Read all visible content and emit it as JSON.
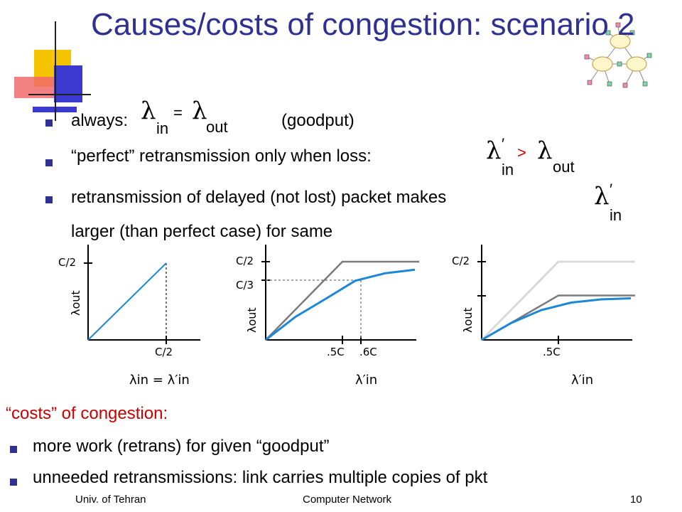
{
  "title": "Causes/costs of congestion: scenario 2",
  "bullets": {
    "b1_text": "always:",
    "b1_note": "(goodput)",
    "b2_text": "“perfect” retransmission only when loss:",
    "b3_line1": "retransmission of delayed  (not lost) packet makes",
    "b3_line2": "larger (than perfect case) for same"
  },
  "math": {
    "lambda": "λ",
    "prime": "′",
    "sub_in": "in",
    "sub_out": "out",
    "eq": "=",
    "gt": ">"
  },
  "costs": {
    "heading": "“costs” of congestion:",
    "item1": "more work (retrans) for given “goodput”",
    "item2": "unneeded retransmissions: link carries multiple copies of pkt"
  },
  "footer": {
    "left": "Univ. of Tehran",
    "center": "Computer Network",
    "page": "10"
  },
  "colors": {
    "title": "#2e3192",
    "bullet": "#2e3192",
    "curve_blue": "#1b87d6",
    "curve_gray": "#7a7a7a",
    "curve_light": "#d9d9d9",
    "red_text": "#cc0000"
  },
  "chart_data": [
    {
      "type": "line",
      "xlabel": "λin = λ′in",
      "ylabel": "λout",
      "x_ticks": [
        "C/2"
      ],
      "y_ticks": [
        "C/2"
      ],
      "series": [
        {
          "points": [
            [
              0,
              0
            ],
            [
              0.5,
              0.5
            ]
          ]
        }
      ]
    },
    {
      "type": "line",
      "xlabel": "λ′in",
      "ylabel": "λout",
      "x_ticks": [
        ".5C",
        ".6C"
      ],
      "y_ticks": [
        "C/2",
        "C/3"
      ],
      "series": [
        {
          "points": [
            [
              0,
              0
            ],
            [
              0.5,
              0.5
            ],
            [
              1.0,
              0.5
            ]
          ]
        },
        {
          "points": [
            [
              0,
              0
            ],
            [
              0.2,
              0.13
            ],
            [
              0.4,
              0.23
            ],
            [
              0.6,
              0.333
            ],
            [
              0.8,
              0.375
            ],
            [
              1.0,
              0.395
            ]
          ]
        }
      ]
    },
    {
      "type": "line",
      "xlabel": "λ′in",
      "ylabel": "λout",
      "x_ticks": [
        ".5C"
      ],
      "y_ticks": [
        "C/2"
      ],
      "series": [
        {
          "points": [
            [
              0,
              0
            ],
            [
              0.5,
              0.5
            ],
            [
              1.0,
              0.5
            ]
          ]
        },
        {
          "points": [
            [
              0,
              0
            ],
            [
              0.5,
              0.25
            ],
            [
              1.0,
              0.25
            ]
          ]
        },
        {
          "points": [
            [
              0,
              0
            ],
            [
              0.2,
              0.08
            ],
            [
              0.4,
              0.14
            ],
            [
              0.6,
              0.175
            ],
            [
              0.8,
              0.19
            ],
            [
              1.0,
              0.195
            ]
          ]
        }
      ]
    }
  ]
}
